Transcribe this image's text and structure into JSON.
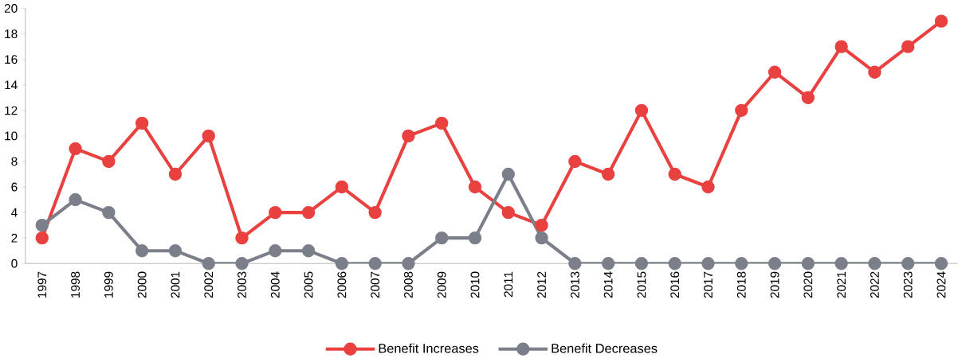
{
  "chart_data": {
    "type": "line",
    "categories": [
      "1997",
      "1998",
      "1999",
      "2000",
      "2001",
      "2002",
      "2003",
      "2004",
      "2005",
      "2006",
      "2007",
      "2008",
      "2009",
      "2010",
      "2011",
      "2012",
      "2013",
      "2014",
      "2015",
      "2016",
      "2017",
      "2018",
      "2019",
      "2020",
      "2021",
      "2022",
      "2023",
      "2024"
    ],
    "series": [
      {
        "name": "Benefit Increases",
        "color": "#e8413f",
        "values": [
          2,
          9,
          8,
          11,
          7,
          10,
          2,
          4,
          4,
          6,
          4,
          10,
          11,
          6,
          4,
          3,
          8,
          7,
          12,
          7,
          6,
          12,
          15,
          13,
          17,
          15,
          17,
          19
        ]
      },
      {
        "name": "Benefit Decreases",
        "color": "#7b7f8a",
        "values": [
          3,
          5,
          4,
          1,
          1,
          0,
          0,
          1,
          1,
          0,
          0,
          0,
          2,
          2,
          7,
          2,
          0,
          0,
          0,
          0,
          0,
          0,
          0,
          0,
          0,
          0,
          0,
          0
        ]
      }
    ],
    "ylim": [
      0,
      20
    ],
    "yticks": [
      0,
      2,
      4,
      6,
      8,
      10,
      12,
      14,
      16,
      18,
      20
    ],
    "legend": "bottom",
    "marker": "circle",
    "line_style": "solid"
  }
}
